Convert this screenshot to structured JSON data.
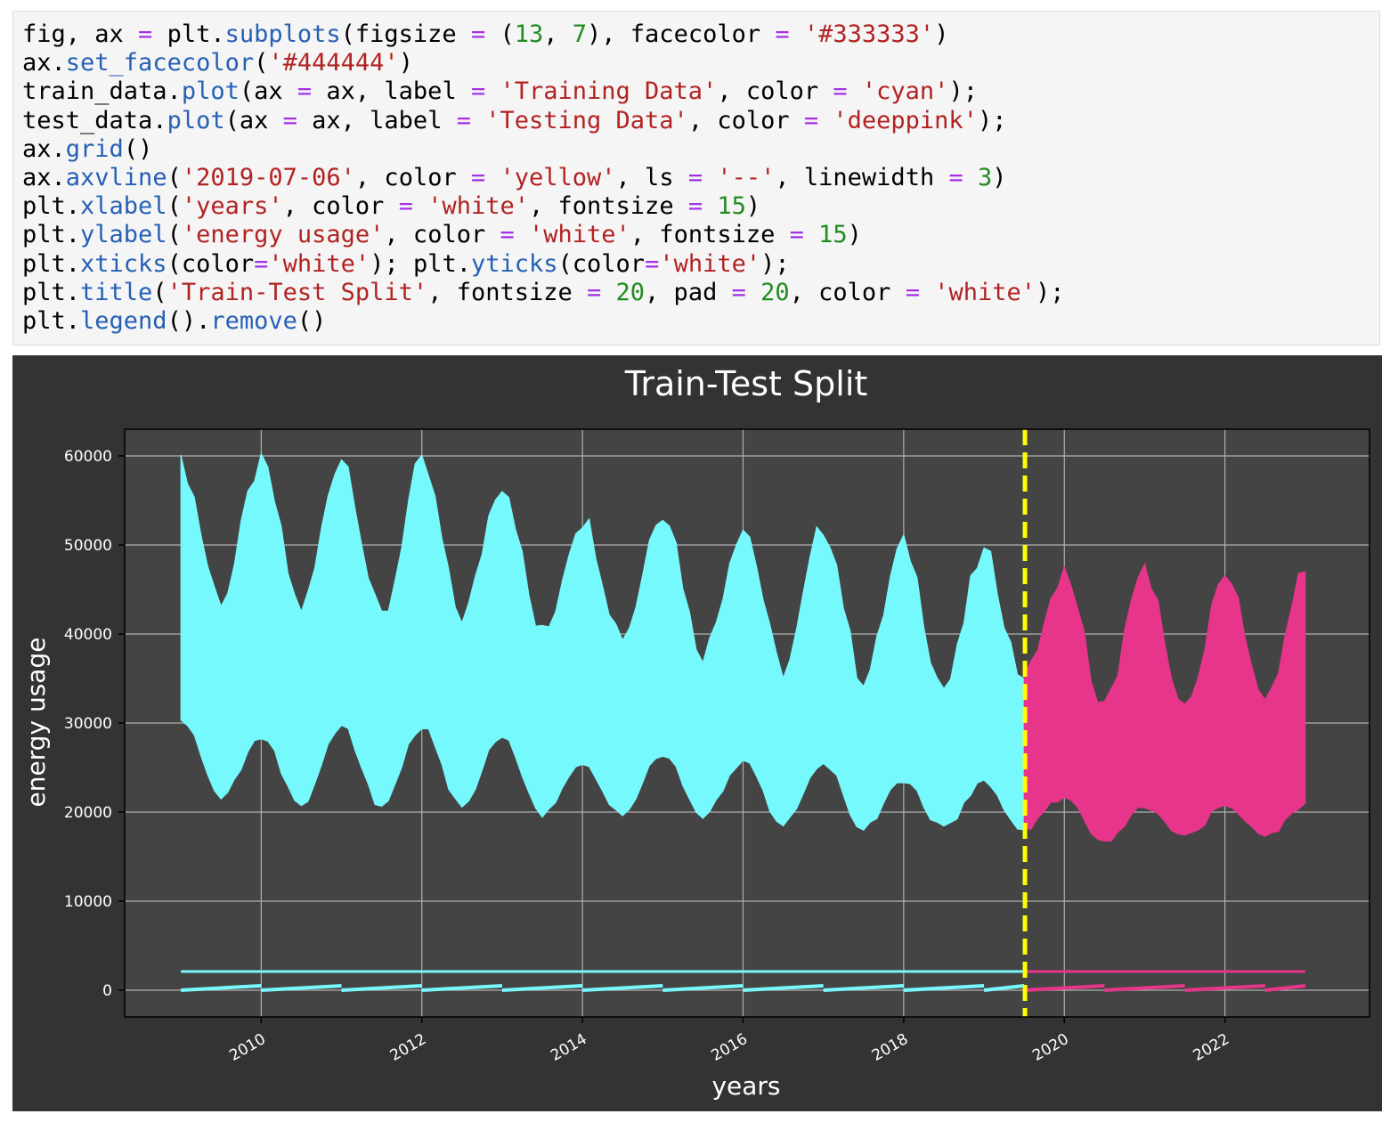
{
  "code": {
    "lines": [
      [
        {
          "t": "fig, ax "
        },
        {
          "t": "=",
          "k": "op"
        },
        {
          "t": " plt."
        },
        {
          "t": "subplots",
          "k": "fn"
        },
        {
          "t": "(figsize "
        },
        {
          "t": "=",
          "k": "op"
        },
        {
          "t": " ("
        },
        {
          "t": "13",
          "k": "num"
        },
        {
          "t": ", "
        },
        {
          "t": "7",
          "k": "num"
        },
        {
          "t": "), facecolor "
        },
        {
          "t": "=",
          "k": "op"
        },
        {
          "t": " "
        },
        {
          "t": "'#333333'",
          "k": "str"
        },
        {
          "t": ")"
        }
      ],
      [
        {
          "t": "ax."
        },
        {
          "t": "set_facecolor",
          "k": "fn"
        },
        {
          "t": "("
        },
        {
          "t": "'#444444'",
          "k": "str"
        },
        {
          "t": ")"
        }
      ],
      [
        {
          "t": "train_data."
        },
        {
          "t": "plot",
          "k": "fn"
        },
        {
          "t": "(ax "
        },
        {
          "t": "=",
          "k": "op"
        },
        {
          "t": " ax, label "
        },
        {
          "t": "=",
          "k": "op"
        },
        {
          "t": " "
        },
        {
          "t": "'Training Data'",
          "k": "str"
        },
        {
          "t": ", color "
        },
        {
          "t": "=",
          "k": "op"
        },
        {
          "t": " "
        },
        {
          "t": "'cyan'",
          "k": "str"
        },
        {
          "t": ");"
        }
      ],
      [
        {
          "t": "test_data."
        },
        {
          "t": "plot",
          "k": "fn"
        },
        {
          "t": "(ax "
        },
        {
          "t": "=",
          "k": "op"
        },
        {
          "t": " ax, label "
        },
        {
          "t": "=",
          "k": "op"
        },
        {
          "t": " "
        },
        {
          "t": "'Testing Data'",
          "k": "str"
        },
        {
          "t": ", color "
        },
        {
          "t": "=",
          "k": "op"
        },
        {
          "t": " "
        },
        {
          "t": "'deeppink'",
          "k": "str"
        },
        {
          "t": ");"
        }
      ],
      [
        {
          "t": "ax."
        },
        {
          "t": "grid",
          "k": "fn"
        },
        {
          "t": "()"
        }
      ],
      [
        {
          "t": "ax."
        },
        {
          "t": "axvline",
          "k": "fn"
        },
        {
          "t": "("
        },
        {
          "t": "'2019-07-06'",
          "k": "str"
        },
        {
          "t": ", color "
        },
        {
          "t": "=",
          "k": "op"
        },
        {
          "t": " "
        },
        {
          "t": "'yellow'",
          "k": "str"
        },
        {
          "t": ", ls "
        },
        {
          "t": "=",
          "k": "op"
        },
        {
          "t": " "
        },
        {
          "t": "'--'",
          "k": "str"
        },
        {
          "t": ", linewidth "
        },
        {
          "t": "=",
          "k": "op"
        },
        {
          "t": " "
        },
        {
          "t": "3",
          "k": "num"
        },
        {
          "t": ")"
        }
      ],
      [
        {
          "t": "plt."
        },
        {
          "t": "xlabel",
          "k": "fn"
        },
        {
          "t": "("
        },
        {
          "t": "'years'",
          "k": "str"
        },
        {
          "t": ", color "
        },
        {
          "t": "=",
          "k": "op"
        },
        {
          "t": " "
        },
        {
          "t": "'white'",
          "k": "str"
        },
        {
          "t": ", fontsize "
        },
        {
          "t": "=",
          "k": "op"
        },
        {
          "t": " "
        },
        {
          "t": "15",
          "k": "num"
        },
        {
          "t": ")"
        }
      ],
      [
        {
          "t": "plt."
        },
        {
          "t": "ylabel",
          "k": "fn"
        },
        {
          "t": "("
        },
        {
          "t": "'energy usage'",
          "k": "str"
        },
        {
          "t": ", color "
        },
        {
          "t": "=",
          "k": "op"
        },
        {
          "t": " "
        },
        {
          "t": "'white'",
          "k": "str"
        },
        {
          "t": ", fontsize "
        },
        {
          "t": "=",
          "k": "op"
        },
        {
          "t": " "
        },
        {
          "t": "15",
          "k": "num"
        },
        {
          "t": ")"
        }
      ],
      [
        {
          "t": "plt."
        },
        {
          "t": "xticks",
          "k": "fn"
        },
        {
          "t": "(color"
        },
        {
          "t": "=",
          "k": "op"
        },
        {
          "t": "'white'",
          "k": "str"
        },
        {
          "t": "); plt."
        },
        {
          "t": "yticks",
          "k": "fn"
        },
        {
          "t": "(color"
        },
        {
          "t": "=",
          "k": "op"
        },
        {
          "t": "'white'",
          "k": "str"
        },
        {
          "t": ");"
        }
      ],
      [
        {
          "t": "plt."
        },
        {
          "t": "title",
          "k": "fn"
        },
        {
          "t": "("
        },
        {
          "t": "'Train-Test Split'",
          "k": "str"
        },
        {
          "t": ", fontsize "
        },
        {
          "t": "=",
          "k": "op"
        },
        {
          "t": " "
        },
        {
          "t": "20",
          "k": "num"
        },
        {
          "t": ", pad "
        },
        {
          "t": "=",
          "k": "op"
        },
        {
          "t": " "
        },
        {
          "t": "20",
          "k": "num"
        },
        {
          "t": ", color "
        },
        {
          "t": "=",
          "k": "op"
        },
        {
          "t": " "
        },
        {
          "t": "'white'",
          "k": "str"
        },
        {
          "t": ");"
        }
      ],
      [
        {
          "t": "plt."
        },
        {
          "t": "legend",
          "k": "fn"
        },
        {
          "t": "()."
        },
        {
          "t": "remove",
          "k": "fn"
        },
        {
          "t": "()"
        }
      ]
    ]
  },
  "chart_data": {
    "type": "line",
    "title": "Train-Test Split",
    "xlabel": "years",
    "ylabel": "energy usage",
    "xlim": [
      2008.3,
      2023.8
    ],
    "ylim": [
      -3000,
      63000
    ],
    "x_ticks": [
      2010,
      2012,
      2014,
      2016,
      2018,
      2020,
      2022
    ],
    "x_tick_labels": [
      "2010",
      "2012",
      "2014",
      "2016",
      "2018",
      "2020",
      "2022"
    ],
    "y_ticks": [
      0,
      10000,
      20000,
      30000,
      40000,
      50000,
      60000
    ],
    "y_tick_labels": [
      "0",
      "10000",
      "20000",
      "30000",
      "40000",
      "50000",
      "60000"
    ],
    "grid": true,
    "legend": "none",
    "split_date": "2019-07-06",
    "split_line": {
      "x": 2019.51,
      "color": "#ffff00",
      "style": "dashed"
    },
    "colors": {
      "figure_bg": "#333333",
      "axes_bg": "#444444",
      "grid": "#b0b0b0",
      "text": "#ffffff"
    },
    "series": [
      {
        "name": "Training Data",
        "color": "#76f9fd",
        "x": [
          2009.0,
          2009.5,
          2010.0,
          2010.5,
          2011.0,
          2011.5,
          2012.0,
          2012.5,
          2013.0,
          2013.5,
          2014.0,
          2014.5,
          2015.0,
          2015.5,
          2016.0,
          2016.5,
          2017.0,
          2017.5,
          2018.0,
          2018.5,
          2019.0,
          2019.5
        ],
        "upper": [
          59000,
          44000,
          59000,
          43000,
          60000,
          42000,
          59000,
          42000,
          57000,
          40000,
          53000,
          40000,
          54000,
          38000,
          52000,
          36000,
          52000,
          35000,
          50000,
          34000,
          49000,
          35000
        ],
        "lower": [
          31000,
          22000,
          29000,
          21000,
          30000,
          21000,
          30000,
          21000,
          29000,
          20000,
          26000,
          20000,
          27000,
          20000,
          26000,
          19000,
          26000,
          18500,
          24000,
          18500,
          24000,
          18000
        ],
        "low_band_y": [
          0,
          300
        ],
        "flat_line_y": 2100
      },
      {
        "name": "Testing Data",
        "color": "#e8358c",
        "x": [
          2019.5,
          2020.0,
          2020.5,
          2021.0,
          2021.5,
          2022.0,
          2022.5,
          2023.0
        ],
        "upper": [
          35000,
          47000,
          32000,
          47000,
          32000,
          47000,
          33000,
          47000
        ],
        "lower": [
          18500,
          22000,
          17000,
          21000,
          17500,
          21000,
          17500,
          21000
        ],
        "low_band_y": [
          0,
          300
        ],
        "flat_line_y": 2100
      }
    ]
  }
}
